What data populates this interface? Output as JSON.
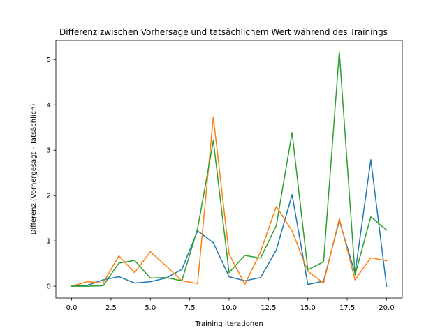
{
  "chart_data": {
    "type": "line",
    "title": "Differenz zwischen Vorhersage und tatsächlichem Wert während des Trainings",
    "xlabel": "Training Iterationen",
    "ylabel": "Differenz (Vorhergesagt - Tatsächlich)",
    "xlim": [
      -1,
      21
    ],
    "ylim": [
      -0.26,
      5.42
    ],
    "xticks": [
      0,
      2.5,
      5,
      7.5,
      10,
      12.5,
      15,
      17.5,
      20
    ],
    "xtick_labels": [
      "0.0",
      "2.5",
      "5.0",
      "7.5",
      "10.0",
      "12.5",
      "15.0",
      "17.5",
      "20.0"
    ],
    "yticks": [
      0,
      1,
      2,
      3,
      4,
      5
    ],
    "ytick_labels": [
      "0",
      "1",
      "2",
      "3",
      "4",
      "5"
    ],
    "grid": false,
    "legend": false,
    "x": [
      0,
      1,
      2,
      3,
      4,
      5,
      6,
      7,
      8,
      9,
      10,
      11,
      12,
      13,
      14,
      15,
      16,
      17,
      18,
      19,
      20
    ],
    "series": [
      {
        "color": "#1f77b4",
        "values": [
          0.0,
          0.02,
          0.14,
          0.21,
          0.07,
          0.1,
          0.18,
          0.37,
          1.22,
          0.96,
          0.21,
          0.12,
          0.19,
          0.8,
          2.02,
          0.04,
          0.11,
          1.45,
          0.28,
          2.79,
          0.0
        ]
      },
      {
        "color": "#ff7f0e",
        "values": [
          0.0,
          0.1,
          0.07,
          0.67,
          0.3,
          0.76,
          0.45,
          0.12,
          0.06,
          3.73,
          0.71,
          0.04,
          0.76,
          1.76,
          1.22,
          0.33,
          0.07,
          1.49,
          0.14,
          0.63,
          0.56
        ]
      },
      {
        "color": "#2ca02c",
        "values": [
          0.0,
          0.0,
          0.01,
          0.51,
          0.57,
          0.18,
          0.19,
          0.12,
          1.27,
          3.21,
          0.3,
          0.68,
          0.62,
          1.34,
          3.39,
          0.36,
          0.54,
          5.17,
          0.25,
          1.53,
          1.24
        ]
      }
    ]
  }
}
